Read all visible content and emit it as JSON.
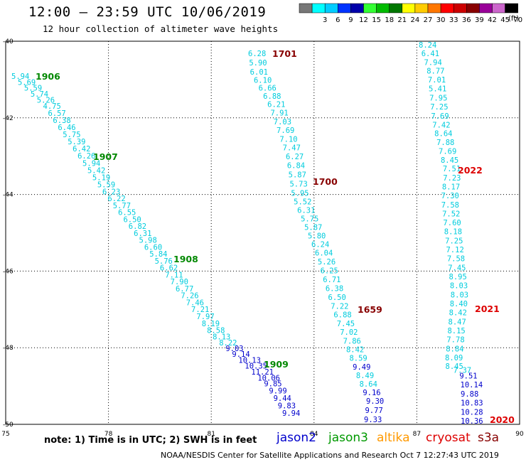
{
  "title": "12:00 – 23:59 UTC 10/06/2019",
  "subtitle": "12 hour collection of altimeter wave heights",
  "note": "note:  1) Time is in UTC;  2) SWH is in feet",
  "credit": "NOAA/NESDIS Center for Satellite Applications and Research    Oct  7 12:27:43 UTC 2019",
  "colorbar": {
    "unit": "(ft)",
    "bins": [
      {
        "label": "",
        "color": "#777777"
      },
      {
        "label": "3",
        "color": "#00ffff"
      },
      {
        "label": "6",
        "color": "#00ccff"
      },
      {
        "label": "9",
        "color": "#0033ff"
      },
      {
        "label": "12",
        "color": "#0000aa"
      },
      {
        "label": "15",
        "color": "#33ff33"
      },
      {
        "label": "18",
        "color": "#00bb00"
      },
      {
        "label": "21",
        "color": "#007700"
      },
      {
        "label": "24",
        "color": "#ffff00"
      },
      {
        "label": "27",
        "color": "#ffcc00"
      },
      {
        "label": "30",
        "color": "#ff7700"
      },
      {
        "label": "33",
        "color": "#ff0000"
      },
      {
        "label": "36",
        "color": "#cc0000"
      },
      {
        "label": "39",
        "color": "#880000"
      },
      {
        "label": "42",
        "color": "#990099"
      },
      {
        "label": "45",
        "color": "#cc66cc"
      },
      {
        "label": "70",
        "color": "#000000"
      }
    ]
  },
  "axes": {
    "x_ticks": [
      "75",
      "78",
      "81",
      "84",
      "87",
      "90"
    ],
    "y_ticks": [
      "-40",
      "-42",
      "-44",
      "-46",
      "-48",
      "-50"
    ]
  },
  "satellites": [
    {
      "name": "jason2",
      "color": "#0000cc"
    },
    {
      "name": "jason3",
      "color": "#009900"
    },
    {
      "name": "altika",
      "color": "#ff9900"
    },
    {
      "name": "cryosat",
      "color": "#dd0000"
    },
    {
      "name": "s3a",
      "color": "#880000"
    }
  ],
  "chart_data": {
    "type": "scatter",
    "xlim": [
      75,
      90
    ],
    "ylim": [
      -50,
      -40
    ],
    "grid": true,
    "passes": [
      {
        "time": "1906",
        "color": "#008800"
      },
      {
        "time": "1907",
        "color": "#008800"
      },
      {
        "time": "1908",
        "color": "#008800"
      },
      {
        "time": "1909",
        "color": "#008800"
      },
      {
        "time": "1701",
        "color": "#880000"
      },
      {
        "time": "1700",
        "color": "#880000"
      },
      {
        "time": "1659",
        "color": "#880000"
      },
      {
        "time": "2022",
        "color": "#dd0000"
      },
      {
        "time": "2021",
        "color": "#dd0000"
      },
      {
        "time": "2020",
        "color": "#dd0000"
      }
    ],
    "tracks": [
      {
        "name": "jason3",
        "values": [
          "5.94",
          "5.69",
          "5.59",
          "5.74",
          "5.26",
          "4.75",
          "6.57",
          "6.38",
          "6.46",
          "5.75",
          "5.39",
          "6.42",
          "6.26",
          "5.94",
          "5.42",
          "5.19",
          "5.59",
          "6.23",
          "6.22",
          "5.77",
          "6.55",
          "6.50",
          "6.82",
          "6.31",
          "5.98",
          "6.60",
          "5.84",
          "5.76",
          "6.62",
          "7.11",
          "7.90",
          "6.77",
          "7.26",
          "7.46",
          "7.21",
          "7.97",
          "8.19",
          "8.58",
          "8.13",
          "8.22",
          "9.03",
          "9.14",
          "10.13",
          "10.35",
          "11.21",
          "10.06",
          "9.85",
          "9.99",
          "9.44",
          "9.83",
          "9.94"
        ]
      },
      {
        "name": "s3a",
        "values": [
          "6.28",
          "5.90",
          "6.01",
          "6.10",
          "6.66",
          "6.88",
          "6.21",
          "7.91",
          "7.03",
          "7.69",
          "7.10",
          "7.47",
          "6.27",
          "6.84",
          "5.87",
          "5.73",
          "5.95",
          "5.52",
          "6.31",
          "5.75",
          "5.87",
          "5.80",
          "6.24",
          "6.04",
          "5.26",
          "6.25",
          "6.71",
          "6.38",
          "6.50",
          "7.22",
          "6.88",
          "7.45",
          "7.02",
          "7.86",
          "8.42",
          "8.59",
          "9.49",
          "8.49",
          "8.64",
          "9.16",
          "9.30",
          "9.77",
          "9.33"
        ]
      },
      {
        "name": "cryosat",
        "values": [
          "8.24",
          "6.41",
          "7.94",
          "8.77",
          "7.01",
          "5.41",
          "7.95",
          "7.25",
          "7.69",
          "7.42",
          "8.64",
          "7.88",
          "7.69",
          "8.45",
          "7.51",
          "7.23",
          "8.17",
          "7.30",
          "7.58",
          "7.52",
          "7.60",
          "8.18",
          "7.25",
          "7.12",
          "7.58",
          "7.45",
          "8.95",
          "8.03",
          "8.03",
          "8.40",
          "8.42",
          "8.47",
          "8.15",
          "7.78",
          "8.84",
          "8.09",
          "8.45",
          "7.37",
          "9.51",
          "10.14",
          "9.88",
          "10.83",
          "10.28",
          "10.36"
        ]
      }
    ]
  }
}
